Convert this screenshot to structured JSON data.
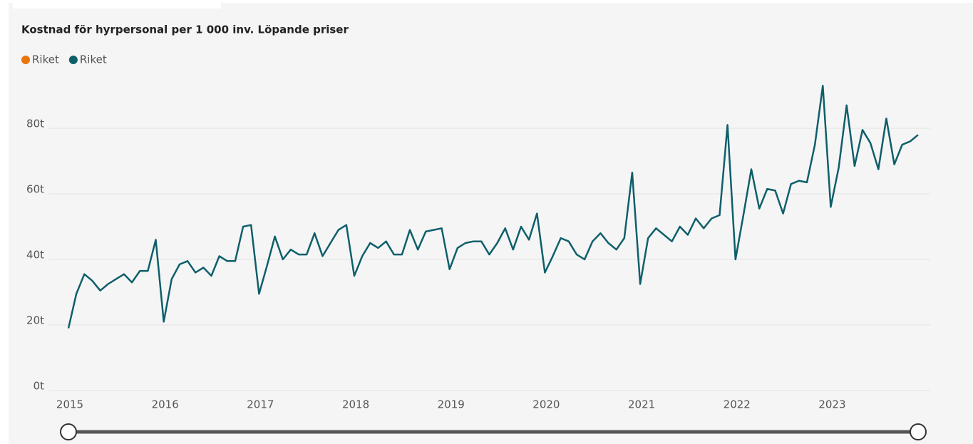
{
  "chart_data": {
    "type": "line",
    "title": "Kostnad för hyrpersonal per 1 000 inv. Löpande priser",
    "legend": [
      {
        "name": "Riket",
        "color": "#e8740c"
      },
      {
        "name": "Riket",
        "color": "#0e5f6a"
      }
    ],
    "xticks": [
      "2015",
      "2016",
      "2017",
      "2018",
      "2019",
      "2020",
      "2021",
      "2022",
      "2023"
    ],
    "series": [
      {
        "name": "Riket",
        "color": "#0e5f6a",
        "values": [
          19,
          29.5,
          35.5,
          33.5,
          30.5,
          32.5,
          34,
          35.5,
          33,
          36.5,
          36.5,
          46,
          21,
          34,
          38.5,
          39.5,
          36,
          37.5,
          35,
          41,
          39.5,
          39.5,
          50,
          50.5,
          29.5,
          38,
          47,
          40,
          43,
          41.5,
          41.5,
          48,
          41,
          45,
          49,
          50.5,
          35,
          41,
          45,
          43.5,
          45.5,
          41.5,
          41.5,
          49,
          43,
          48.5,
          49,
          49.5,
          37,
          43.5,
          45,
          45.5,
          45.5,
          41.5,
          45,
          49.5,
          43,
          50,
          46,
          54,
          36,
          41,
          46.5,
          45.5,
          41.5,
          40,
          45.5,
          48,
          45,
          43,
          46.5,
          66.5,
          32.5,
          46.5,
          49.5,
          47.5,
          45.5,
          50,
          47.5,
          52.5,
          49.5,
          52.5,
          53.5,
          81,
          40,
          53.5,
          67.5,
          55.5,
          61.5,
          61,
          54,
          63,
          64,
          63.5,
          75,
          93,
          56,
          68,
          87,
          68.5,
          79.5,
          75.5,
          67.5,
          83,
          69,
          75,
          76,
          78
        ]
      }
    ],
    "ylim": [
      0,
      95
    ],
    "yticks": [
      {
        "value": 0,
        "label": "0t"
      },
      {
        "value": 20,
        "label": "20t"
      },
      {
        "value": 40,
        "label": "40t"
      },
      {
        "value": 60,
        "label": "60t"
      },
      {
        "value": 80,
        "label": "80t"
      }
    ],
    "grid": true
  }
}
